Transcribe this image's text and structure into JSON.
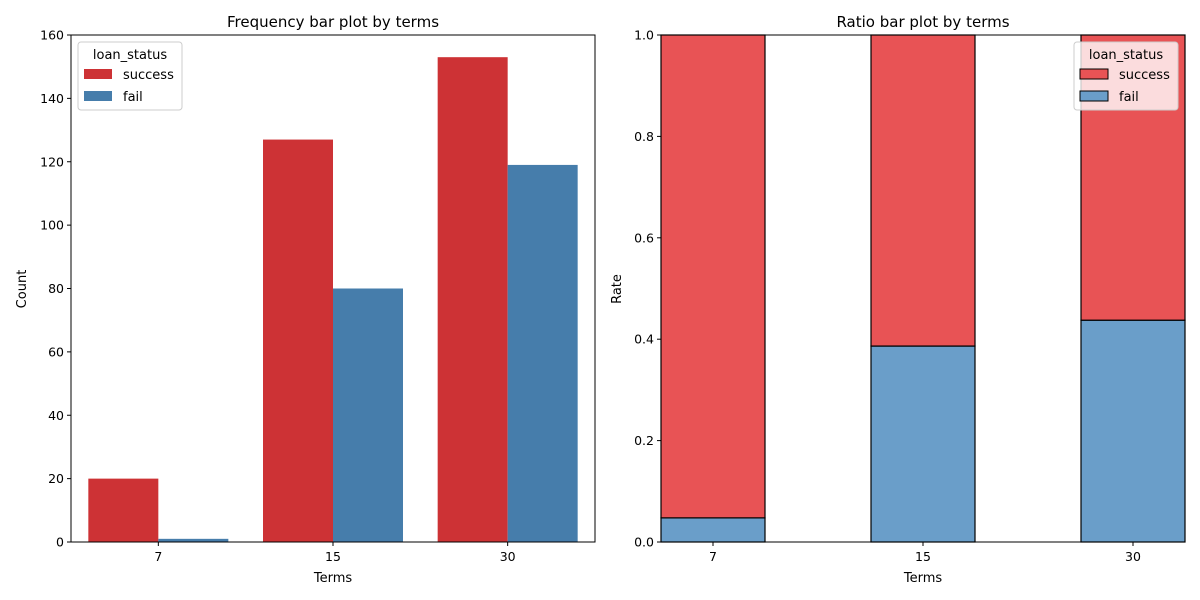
{
  "chart_data": [
    {
      "type": "bar",
      "title": "Frequency bar plot by terms",
      "xlabel": "Terms",
      "ylabel": "Count",
      "categories": [
        "7",
        "15",
        "30"
      ],
      "series": [
        {
          "name": "success",
          "values": [
            20,
            127,
            153
          ],
          "color": "#cd3235"
        },
        {
          "name": "fail",
          "values": [
            1,
            80,
            119
          ],
          "color": "#467dab"
        }
      ],
      "ylim": [
        0,
        160
      ],
      "yticks": [
        "0",
        "20",
        "40",
        "60",
        "80",
        "100",
        "120",
        "140",
        "160"
      ],
      "legend": {
        "title": "loan_status",
        "placement": "top-left"
      },
      "grid": false
    },
    {
      "type": "bar",
      "stacked": true,
      "title": "Ratio bar plot by terms",
      "xlabel": "Terms",
      "ylabel": "Rate",
      "categories": [
        "7",
        "15",
        "30"
      ],
      "series": [
        {
          "name": "fail",
          "values": [
            0.0476,
            0.3865,
            0.4375
          ],
          "color": "#6a9ec9"
        },
        {
          "name": "success",
          "values": [
            0.9524,
            0.6135,
            0.5625
          ],
          "color": "#e85355"
        }
      ],
      "ylim": [
        0,
        1.0
      ],
      "yticks": [
        "0.0",
        "0.2",
        "0.4",
        "0.6",
        "0.8",
        "1.0"
      ],
      "legend": {
        "title": "loan_status",
        "placement": "top-right",
        "entries": [
          "success",
          "fail"
        ]
      },
      "grid": false
    }
  ]
}
